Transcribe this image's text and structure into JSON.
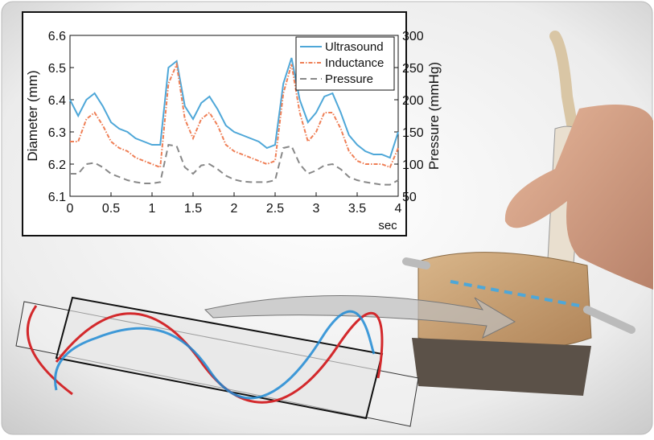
{
  "chart_data": {
    "type": "line",
    "xlabel": "sec",
    "ylabel": "Diameter (mm)",
    "y2label": "Pressure (mmHg)",
    "x": [
      0,
      0.1,
      0.2,
      0.3,
      0.4,
      0.5,
      0.6,
      0.7,
      0.8,
      0.9,
      1.0,
      1.1,
      1.2,
      1.3,
      1.4,
      1.5,
      1.6,
      1.7,
      1.8,
      1.9,
      2.0,
      2.1,
      2.2,
      2.3,
      2.4,
      2.5,
      2.6,
      2.7,
      2.8,
      2.9,
      3.0,
      3.1,
      3.2,
      3.3,
      3.4,
      3.5,
      3.6,
      3.7,
      3.8,
      3.9,
      4.0
    ],
    "xlim": [
      0,
      4
    ],
    "xticks": [
      0,
      0.5,
      1,
      1.5,
      2,
      2.5,
      3,
      3.5,
      4
    ],
    "ylim": [
      6.1,
      6.6
    ],
    "yticks": [
      6.1,
      6.2,
      6.3,
      6.4,
      6.5,
      6.6
    ],
    "y2lim": [
      50,
      300
    ],
    "y2ticks": [
      50,
      100,
      150,
      200,
      250,
      300
    ],
    "legend": "upper right",
    "series": [
      {
        "name": "Ultrasound",
        "color": "#4ea7d8",
        "dash": "solid",
        "values": [
          6.4,
          6.35,
          6.4,
          6.42,
          6.38,
          6.33,
          6.31,
          6.3,
          6.28,
          6.27,
          6.26,
          6.26,
          6.5,
          6.52,
          6.38,
          6.34,
          6.39,
          6.41,
          6.37,
          6.32,
          6.3,
          6.29,
          6.28,
          6.27,
          6.25,
          6.26,
          6.45,
          6.53,
          6.4,
          6.33,
          6.36,
          6.41,
          6.42,
          6.36,
          6.29,
          6.26,
          6.24,
          6.23,
          6.23,
          6.22,
          6.3
        ]
      },
      {
        "name": "Inductance",
        "color": "#ef7f56",
        "dash": "dashdot",
        "values": [
          6.27,
          6.27,
          6.34,
          6.36,
          6.32,
          6.27,
          6.25,
          6.24,
          6.22,
          6.21,
          6.2,
          6.19,
          6.45,
          6.51,
          6.34,
          6.28,
          6.34,
          6.36,
          6.32,
          6.26,
          6.24,
          6.23,
          6.22,
          6.21,
          6.2,
          6.21,
          6.42,
          6.51,
          6.36,
          6.27,
          6.3,
          6.36,
          6.36,
          6.31,
          6.24,
          6.21,
          6.2,
          6.2,
          6.2,
          6.19,
          6.25
        ]
      },
      {
        "name": "Pressure",
        "color": "#888888",
        "dash": "dashed",
        "axis": "y2",
        "values": [
          85,
          85,
          100,
          102,
          95,
          85,
          80,
          75,
          72,
          70,
          70,
          72,
          130,
          128,
          95,
          85,
          98,
          100,
          92,
          82,
          76,
          73,
          72,
          72,
          72,
          75,
          125,
          128,
          100,
          85,
          90,
          98,
          100,
          92,
          80,
          75,
          72,
          70,
          68,
          68,
          75
        ]
      }
    ]
  }
}
